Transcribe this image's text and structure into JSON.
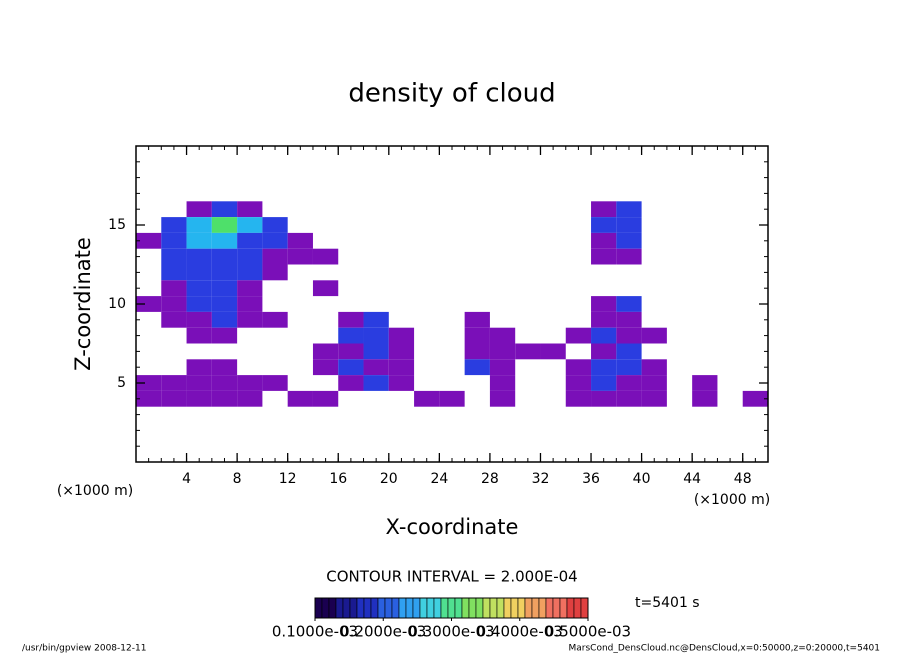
{
  "chart_data": {
    "type": "contour",
    "title": "density of cloud",
    "xlabel": "X-coordinate",
    "ylabel": "Z-coordinate",
    "xunit": "(×1000 m)",
    "yunit": "(×1000 m)",
    "contour_note": "CONTOUR INTERVAL = 2.000E-04",
    "time_label": "t=5401 s",
    "footer_left": "/usr/bin/gpview  2008-12-11",
    "footer_right": "MarsCond_DensCloud.nc@DensCloud,x=0:50000,z=0:20000,t=5401",
    "xlim": [
      0,
      50
    ],
    "ylim": [
      0,
      20
    ],
    "xticks": [
      4,
      8,
      12,
      16,
      20,
      24,
      28,
      32,
      36,
      40,
      44,
      48
    ],
    "yticks": [
      5,
      10,
      15
    ],
    "minor_step": 1,
    "x": [
      1,
      3,
      5,
      7,
      9,
      11,
      13,
      15,
      17,
      19,
      21,
      23,
      25,
      27,
      29,
      31,
      33,
      35,
      37,
      39,
      41,
      43,
      45,
      47,
      49
    ],
    "z": [
      16,
      15,
      14,
      13,
      12,
      11,
      10,
      9,
      8,
      7,
      6,
      5,
      4
    ],
    "cell_size": [
      2,
      1
    ],
    "values": [
      [
        0,
        0,
        0.0001,
        0.0003,
        0.0001,
        0,
        0,
        0,
        0,
        0,
        0,
        0,
        0,
        0,
        0,
        0,
        0,
        0,
        0.0001,
        0.0003,
        0,
        0,
        0,
        0,
        0
      ],
      [
        0,
        0.0003,
        0.0005,
        0.0007,
        0.0005,
        0.0003,
        0,
        0,
        0,
        0,
        0,
        0,
        0,
        0,
        0,
        0,
        0,
        0,
        0.0003,
        0.0003,
        0,
        0,
        0,
        0,
        0
      ],
      [
        0.0001,
        0.0003,
        0.0005,
        0.0005,
        0.0003,
        0.0003,
        0.0001,
        0,
        0,
        0,
        0,
        0,
        0,
        0,
        0,
        0,
        0,
        0,
        0.0001,
        0.0003,
        0,
        0,
        0,
        0,
        0
      ],
      [
        0,
        0.0003,
        0.0003,
        0.0003,
        0.0003,
        0.0001,
        0.0001,
        0.0001,
        0,
        0,
        0,
        0,
        0,
        0,
        0,
        0,
        0,
        0,
        0.0001,
        0.0001,
        0,
        0,
        0,
        0,
        0
      ],
      [
        0,
        0.0003,
        0.0003,
        0.0003,
        0.0003,
        0.0001,
        0,
        0,
        0,
        0,
        0,
        0,
        0,
        0,
        0,
        0,
        0,
        0,
        0,
        0,
        0,
        0,
        0,
        0,
        0
      ],
      [
        0,
        0.0001,
        0.0003,
        0.0003,
        0.0001,
        0,
        0,
        0.0001,
        0,
        0,
        0,
        0,
        0,
        0,
        0,
        0,
        0,
        0,
        0,
        0,
        0,
        0,
        0,
        0,
        0
      ],
      [
        0.0001,
        0.0001,
        0.0003,
        0.0003,
        0.0001,
        0,
        0,
        0,
        0,
        0,
        0,
        0,
        0,
        0,
        0,
        0,
        0,
        0,
        0.0001,
        0.0003,
        0,
        0,
        0,
        0,
        0
      ],
      [
        0,
        0.0001,
        0.0001,
        0.0003,
        0.0001,
        0.0001,
        0,
        0,
        0.0001,
        0.0003,
        0,
        0,
        0,
        0.0001,
        0,
        0,
        0,
        0,
        0.0001,
        0.0001,
        0,
        0,
        0,
        0,
        0
      ],
      [
        0,
        0,
        0.0001,
        0.0001,
        0,
        0,
        0,
        0,
        0.0003,
        0.0003,
        0.0001,
        0,
        0,
        0.0001,
        0.0001,
        0,
        0,
        0.0001,
        0.0003,
        0.0001,
        0.0001,
        0,
        0,
        0,
        0
      ],
      [
        0,
        0,
        0,
        0,
        0,
        0,
        0,
        0.0001,
        0.0001,
        0.0003,
        0.0001,
        0,
        0,
        0.0001,
        0.0001,
        0.0001,
        0.0001,
        0,
        0.0001,
        0.0003,
        0,
        0,
        0,
        0,
        0
      ],
      [
        0,
        0,
        0.0001,
        0.0001,
        0,
        0,
        0,
        0.0001,
        0.0003,
        0.0001,
        0.0001,
        0,
        0,
        0.0003,
        0.0001,
        0,
        0,
        0.0001,
        0.0003,
        0.0003,
        0.0001,
        0,
        0,
        0,
        0
      ],
      [
        0.0001,
        0.0001,
        0.0001,
        0.0001,
        0.0001,
        0.0001,
        0,
        0,
        0.0001,
        0.0003,
        0.0001,
        0,
        0,
        0,
        0.0001,
        0,
        0,
        0.0001,
        0.0003,
        0.0001,
        0.0001,
        0,
        0.0001,
        0,
        0
      ],
      [
        0.0001,
        0.0001,
        0.0001,
        0.0001,
        0.0001,
        0,
        0.0001,
        0.0001,
        0,
        0,
        0,
        0.0001,
        0.0001,
        0,
        0.0001,
        0,
        0,
        0.0001,
        0.0001,
        0.0001,
        0.0001,
        0,
        0.0001,
        0,
        0.0001
      ]
    ],
    "levels": [
      0.0001,
      0.0003,
      0.0005,
      0.0007
    ],
    "level_colors": [
      "#7a0fb8",
      "#2a3de0",
      "#25b5ef",
      "#4ee06a"
    ],
    "cblim": [
      0.0001,
      0.0005
    ],
    "cbticks": [
      {
        "value": 0.0001,
        "label": "0.1000e-03"
      },
      {
        "value": 0.0002,
        "label": "0.2000e-03"
      },
      {
        "value": 0.0003,
        "label": "0.3000e-03"
      },
      {
        "value": 0.0004,
        "label": "0.4000e-03"
      },
      {
        "value": 0.0005,
        "label": "0.5000e-03"
      }
    ],
    "cb_colors": [
      "#1a0050",
      "#1a1a90",
      "#2030c0",
      "#2a60e0",
      "#30a0f0",
      "#40d0e0",
      "#50e090",
      "#80e060",
      "#c0e060",
      "#f0d060",
      "#f0a060",
      "#f07060",
      "#e04040"
    ]
  }
}
